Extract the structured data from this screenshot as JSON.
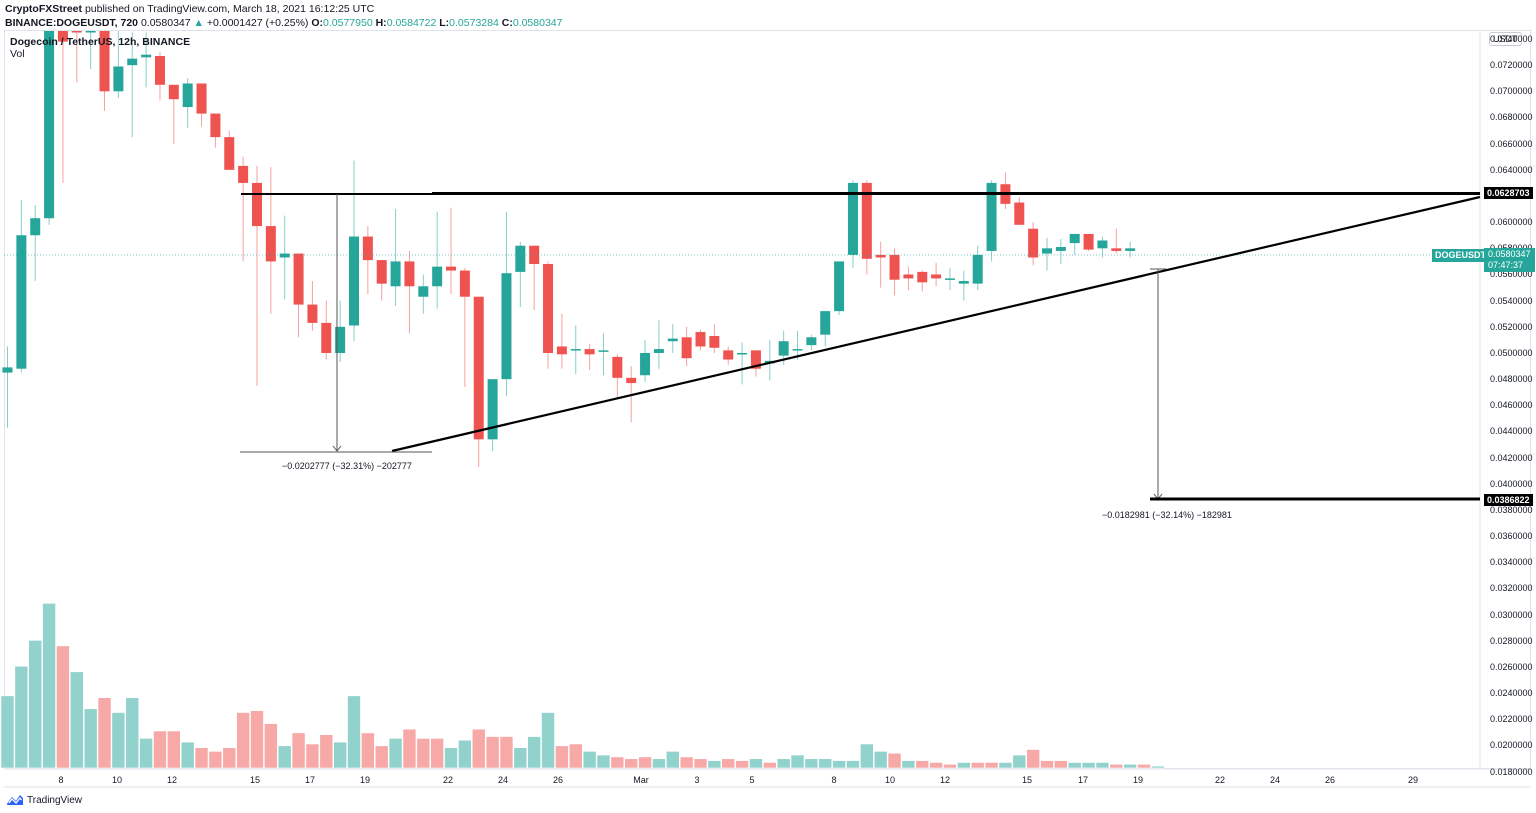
{
  "header": {
    "publisher": "CryptoFXStreet",
    "published_text": "published on TradingView.com, March 18, 2021 16:12:25 UTC",
    "symbol_line": "BINANCE:DOGEUSDT, 720",
    "last": "0.0580347",
    "change": "+0.0001427 (+0.25%)",
    "open_label": "O:",
    "open": "0.0577950",
    "high_label": "H:",
    "high": "0.0584722",
    "low_label": "L:",
    "low": "0.0573284",
    "close_label": "C:",
    "close": "0.0580347"
  },
  "legend": {
    "title": "Dogecoin / TetherUS, 12h, BINANCE",
    "volume": "Vol"
  },
  "price_axis": {
    "currency": "USDT",
    "labels": [
      "0.0740000",
      "0.0720000",
      "0.0700000",
      "0.0680000",
      "0.0660000",
      "0.0640000",
      "0.0620000",
      "0.0600000",
      "0.0580000",
      "0.0560000",
      "0.0540000",
      "0.0520000",
      "0.0500000",
      "0.0480000",
      "0.0460000",
      "0.0440000",
      "0.0420000",
      "0.0400000",
      "0.0380000",
      "0.0360000",
      "0.0340000",
      "0.0320000",
      "0.0300000",
      "0.0280000",
      "0.0260000",
      "0.0240000",
      "0.0220000",
      "0.0200000",
      "0.0180000"
    ],
    "resistance_tag": "0.0628703",
    "target_tag": "0.0386822",
    "current_symbol": "DOGEUSDT",
    "current_price": "0.0580347",
    "countdown": "07:47:37"
  },
  "time_axis": {
    "labels": [
      "8",
      "10",
      "12",
      "15",
      "17",
      "19",
      "22",
      "24",
      "26",
      "Mar",
      "3",
      "5",
      "8",
      "10",
      "12",
      "15",
      "17",
      "19",
      "22",
      "24",
      "26",
      "29"
    ]
  },
  "measurements": {
    "left": "−0.0202777 (−32.31%) −202777",
    "right": "−0.0182981 (−32.14%) −182981"
  },
  "branding": {
    "name": "TradingView"
  },
  "colors": {
    "up": "#26a69a",
    "down": "#ef5350",
    "vol_up": "#92d2cc",
    "vol_down": "#f7a9a7",
    "lines": "#000000"
  },
  "chart_data": {
    "type": "candlestick",
    "title": "Dogecoin / TetherUS, 12h, BINANCE",
    "ylabel": "USDT",
    "ylim": [
      0.0175,
      0.0755
    ],
    "interval": "12h",
    "annotations": [
      {
        "type": "horizontal_resistance",
        "price": 0.0628703
      },
      {
        "type": "ascending_trendline",
        "from_date": "Feb 20",
        "from_price": 0.0425,
        "to_date": "Mar 31",
        "to_price": 0.0628
      },
      {
        "type": "target",
        "price": 0.0386822
      },
      {
        "type": "measure",
        "text": "−0.0202777 (−32.31%) −202777"
      },
      {
        "type": "measure",
        "text": "−0.0182981 (−32.14%) −182981"
      }
    ],
    "candles": [
      {
        "o": 0.0485,
        "h": 0.0505,
        "l": 0.0443,
        "c": 0.0489
      },
      {
        "o": 0.0488,
        "h": 0.0617,
        "l": 0.0485,
        "c": 0.059
      },
      {
        "o": 0.059,
        "h": 0.0613,
        "l": 0.0555,
        "c": 0.0603
      },
      {
        "o": 0.0603,
        "h": 0.076,
        "l": 0.0598,
        "c": 0.076
      },
      {
        "o": 0.076,
        "h": 0.076,
        "l": 0.063,
        "c": 0.0738
      },
      {
        "o": 0.0755,
        "h": 0.076,
        "l": 0.0707,
        "c": 0.0745
      },
      {
        "o": 0.076,
        "h": 0.076,
        "l": 0.0717,
        "c": 0.076
      },
      {
        "o": 0.076,
        "h": 0.076,
        "l": 0.0685,
        "c": 0.07
      },
      {
        "o": 0.07,
        "h": 0.0752,
        "l": 0.0695,
        "c": 0.0719
      },
      {
        "o": 0.072,
        "h": 0.0745,
        "l": 0.0665,
        "c": 0.0725
      },
      {
        "o": 0.0726,
        "h": 0.0745,
        "l": 0.0703,
        "c": 0.0728
      },
      {
        "o": 0.0727,
        "h": 0.073,
        "l": 0.0693,
        "c": 0.0705
      },
      {
        "o": 0.0705,
        "h": 0.07,
        "l": 0.066,
        "c": 0.0694
      },
      {
        "o": 0.0688,
        "h": 0.071,
        "l": 0.0672,
        "c": 0.0706
      },
      {
        "o": 0.0706,
        "h": 0.07,
        "l": 0.0673,
        "c": 0.0683
      },
      {
        "o": 0.0683,
        "h": 0.0679,
        "l": 0.0657,
        "c": 0.0665
      },
      {
        "o": 0.0665,
        "h": 0.067,
        "l": 0.0644,
        "c": 0.064
      },
      {
        "o": 0.0643,
        "h": 0.065,
        "l": 0.057,
        "c": 0.063
      },
      {
        "o": 0.063,
        "h": 0.0643,
        "l": 0.0475,
        "c": 0.0597
      },
      {
        "o": 0.0597,
        "h": 0.0642,
        "l": 0.053,
        "c": 0.057
      },
      {
        "o": 0.0573,
        "h": 0.0605,
        "l": 0.0541,
        "c": 0.0576
      },
      {
        "o": 0.0576,
        "h": 0.0573,
        "l": 0.0512,
        "c": 0.0537
      },
      {
        "o": 0.0537,
        "h": 0.0555,
        "l": 0.0517,
        "c": 0.0523
      },
      {
        "o": 0.0523,
        "h": 0.054,
        "l": 0.0495,
        "c": 0.05
      },
      {
        "o": 0.05,
        "h": 0.054,
        "l": 0.0493,
        "c": 0.052
      },
      {
        "o": 0.0521,
        "h": 0.0647,
        "l": 0.0509,
        "c": 0.0589
      },
      {
        "o": 0.0589,
        "h": 0.0597,
        "l": 0.0545,
        "c": 0.0571
      },
      {
        "o": 0.0571,
        "h": 0.056,
        "l": 0.054,
        "c": 0.0553
      },
      {
        "o": 0.0551,
        "h": 0.061,
        "l": 0.0536,
        "c": 0.057
      },
      {
        "o": 0.057,
        "h": 0.0578,
        "l": 0.0515,
        "c": 0.0551
      },
      {
        "o": 0.0543,
        "h": 0.056,
        "l": 0.053,
        "c": 0.0551
      },
      {
        "o": 0.0551,
        "h": 0.0608,
        "l": 0.0534,
        "c": 0.0566
      },
      {
        "o": 0.0566,
        "h": 0.0611,
        "l": 0.0545,
        "c": 0.0563
      },
      {
        "o": 0.0563,
        "h": 0.0565,
        "l": 0.0474,
        "c": 0.0543
      },
      {
        "o": 0.0543,
        "h": 0.0543,
        "l": 0.0413,
        "c": 0.0434
      },
      {
        "o": 0.0434,
        "h": 0.0478,
        "l": 0.0425,
        "c": 0.048
      },
      {
        "o": 0.048,
        "h": 0.0608,
        "l": 0.0467,
        "c": 0.0561
      },
      {
        "o": 0.0562,
        "h": 0.0585,
        "l": 0.0535,
        "c": 0.0582
      },
      {
        "o": 0.0582,
        "h": 0.0574,
        "l": 0.0533,
        "c": 0.0568
      },
      {
        "o": 0.0568,
        "h": 0.057,
        "l": 0.0488,
        "c": 0.05
      },
      {
        "o": 0.0505,
        "h": 0.053,
        "l": 0.0488,
        "c": 0.0499
      },
      {
        "o": 0.0502,
        "h": 0.0521,
        "l": 0.0484,
        "c": 0.0503
      },
      {
        "o": 0.0503,
        "h": 0.0507,
        "l": 0.0487,
        "c": 0.0499
      },
      {
        "o": 0.0501,
        "h": 0.0515,
        "l": 0.0483,
        "c": 0.0502
      },
      {
        "o": 0.0497,
        "h": 0.0499,
        "l": 0.0466,
        "c": 0.0481
      },
      {
        "o": 0.0481,
        "h": 0.049,
        "l": 0.0447,
        "c": 0.0477
      },
      {
        "o": 0.0483,
        "h": 0.051,
        "l": 0.0478,
        "c": 0.05
      },
      {
        "o": 0.05,
        "h": 0.0525,
        "l": 0.0488,
        "c": 0.0503
      },
      {
        "o": 0.0509,
        "h": 0.0522,
        "l": 0.05,
        "c": 0.0511
      },
      {
        "o": 0.0512,
        "h": 0.052,
        "l": 0.049,
        "c": 0.0496
      },
      {
        "o": 0.0516,
        "h": 0.0518,
        "l": 0.0502,
        "c": 0.0505
      },
      {
        "o": 0.0513,
        "h": 0.0522,
        "l": 0.05,
        "c": 0.0504
      },
      {
        "o": 0.0502,
        "h": 0.0505,
        "l": 0.0491,
        "c": 0.0495
      },
      {
        "o": 0.0499,
        "h": 0.0508,
        "l": 0.0476,
        "c": 0.05
      },
      {
        "o": 0.0502,
        "h": 0.0495,
        "l": 0.0482,
        "c": 0.0488
      },
      {
        "o": 0.0492,
        "h": 0.051,
        "l": 0.0479,
        "c": 0.0494
      },
      {
        "o": 0.0498,
        "h": 0.0517,
        "l": 0.0491,
        "c": 0.0509
      },
      {
        "o": 0.0502,
        "h": 0.0517,
        "l": 0.0495,
        "c": 0.0503
      },
      {
        "o": 0.0506,
        "h": 0.0514,
        "l": 0.0502,
        "c": 0.0512
      },
      {
        "o": 0.0514,
        "h": 0.0525,
        "l": 0.0505,
        "c": 0.0532
      },
      {
        "o": 0.0532,
        "h": 0.0568,
        "l": 0.0529,
        "c": 0.057
      },
      {
        "o": 0.0575,
        "h": 0.0632,
        "l": 0.0565,
        "c": 0.063
      },
      {
        "o": 0.063,
        "h": 0.0632,
        "l": 0.056,
        "c": 0.0572
      },
      {
        "o": 0.0575,
        "h": 0.0585,
        "l": 0.055,
        "c": 0.0573
      },
      {
        "o": 0.0575,
        "h": 0.058,
        "l": 0.0544,
        "c": 0.0556
      },
      {
        "o": 0.056,
        "h": 0.0566,
        "l": 0.0548,
        "c": 0.0557
      },
      {
        "o": 0.0562,
        "h": 0.0563,
        "l": 0.0547,
        "c": 0.0554
      },
      {
        "o": 0.056,
        "h": 0.0569,
        "l": 0.0551,
        "c": 0.0557
      },
      {
        "o": 0.0556,
        "h": 0.0565,
        "l": 0.0548,
        "c": 0.0557
      },
      {
        "o": 0.0553,
        "h": 0.0563,
        "l": 0.054,
        "c": 0.0555
      },
      {
        "o": 0.0553,
        "h": 0.0582,
        "l": 0.0548,
        "c": 0.0575
      },
      {
        "o": 0.0578,
        "h": 0.0632,
        "l": 0.057,
        "c": 0.063
      },
      {
        "o": 0.0629,
        "h": 0.0638,
        "l": 0.061,
        "c": 0.0614
      },
      {
        "o": 0.0615,
        "h": 0.0619,
        "l": 0.0598,
        "c": 0.0598
      },
      {
        "o": 0.0595,
        "h": 0.06,
        "l": 0.0567,
        "c": 0.0573
      },
      {
        "o": 0.0576,
        "h": 0.0588,
        "l": 0.0563,
        "c": 0.058
      },
      {
        "o": 0.0578,
        "h": 0.0587,
        "l": 0.0568,
        "c": 0.0581
      },
      {
        "o": 0.0584,
        "h": 0.059,
        "l": 0.0575,
        "c": 0.0591
      },
      {
        "o": 0.0591,
        "h": 0.059,
        "l": 0.0578,
        "c": 0.0579
      },
      {
        "o": 0.058,
        "h": 0.0589,
        "l": 0.0573,
        "c": 0.0586
      },
      {
        "o": 0.058,
        "h": 0.0595,
        "l": 0.0576,
        "c": 0.0578
      },
      {
        "o": 0.0578,
        "h": 0.0585,
        "l": 0.0573,
        "c": 0.058
      }
    ],
    "volume_ylim": [
      0,
      1
    ],
    "volumes": [
      {
        "v": 0.39,
        "up": true
      },
      {
        "v": 0.55,
        "up": true
      },
      {
        "v": 0.69,
        "up": true
      },
      {
        "v": 0.89,
        "up": true
      },
      {
        "v": 0.66,
        "up": false
      },
      {
        "v": 0.52,
        "up": true
      },
      {
        "v": 0.32,
        "up": true
      },
      {
        "v": 0.38,
        "up": false
      },
      {
        "v": 0.3,
        "up": true
      },
      {
        "v": 0.38,
        "up": true
      },
      {
        "v": 0.16,
        "up": true
      },
      {
        "v": 0.2,
        "up": false
      },
      {
        "v": 0.2,
        "up": false
      },
      {
        "v": 0.14,
        "up": true
      },
      {
        "v": 0.11,
        "up": false
      },
      {
        "v": 0.09,
        "up": false
      },
      {
        "v": 0.11,
        "up": false
      },
      {
        "v": 0.3,
        "up": false
      },
      {
        "v": 0.31,
        "up": false
      },
      {
        "v": 0.24,
        "up": false
      },
      {
        "v": 0.12,
        "up": true
      },
      {
        "v": 0.19,
        "up": false
      },
      {
        "v": 0.13,
        "up": false
      },
      {
        "v": 0.18,
        "up": false
      },
      {
        "v": 0.14,
        "up": true
      },
      {
        "v": 0.39,
        "up": true
      },
      {
        "v": 0.19,
        "up": false
      },
      {
        "v": 0.12,
        "up": false
      },
      {
        "v": 0.16,
        "up": true
      },
      {
        "v": 0.21,
        "up": false
      },
      {
        "v": 0.16,
        "up": false
      },
      {
        "v": 0.16,
        "up": false
      },
      {
        "v": 0.11,
        "up": true
      },
      {
        "v": 0.15,
        "up": true
      },
      {
        "v": 0.21,
        "up": false
      },
      {
        "v": 0.17,
        "up": false
      },
      {
        "v": 0.17,
        "up": false
      },
      {
        "v": 0.11,
        "up": true
      },
      {
        "v": 0.17,
        "up": true
      },
      {
        "v": 0.3,
        "up": true
      },
      {
        "v": 0.12,
        "up": false
      },
      {
        "v": 0.13,
        "up": false
      },
      {
        "v": 0.09,
        "up": true
      },
      {
        "v": 0.07,
        "up": true
      },
      {
        "v": 0.06,
        "up": false
      },
      {
        "v": 0.05,
        "up": false
      },
      {
        "v": 0.06,
        "up": false
      },
      {
        "v": 0.05,
        "up": true
      },
      {
        "v": 0.09,
        "up": true
      },
      {
        "v": 0.06,
        "up": false
      },
      {
        "v": 0.05,
        "up": false
      },
      {
        "v": 0.04,
        "up": true
      },
      {
        "v": 0.05,
        "up": false
      },
      {
        "v": 0.04,
        "up": false
      },
      {
        "v": 0.05,
        "up": true
      },
      {
        "v": 0.03,
        "up": false
      },
      {
        "v": 0.05,
        "up": true
      },
      {
        "v": 0.07,
        "up": true
      },
      {
        "v": 0.05,
        "up": true
      },
      {
        "v": 0.05,
        "up": true
      },
      {
        "v": 0.04,
        "up": true
      },
      {
        "v": 0.04,
        "up": true
      },
      {
        "v": 0.13,
        "up": true
      },
      {
        "v": 0.09,
        "up": true
      },
      {
        "v": 0.08,
        "up": false
      },
      {
        "v": 0.04,
        "up": true
      },
      {
        "v": 0.04,
        "up": false
      },
      {
        "v": 0.03,
        "up": false
      },
      {
        "v": 0.02,
        "up": false
      },
      {
        "v": 0.03,
        "up": true
      },
      {
        "v": 0.03,
        "up": false
      },
      {
        "v": 0.03,
        "up": false
      },
      {
        "v": 0.03,
        "up": true
      },
      {
        "v": 0.07,
        "up": true
      },
      {
        "v": 0.1,
        "up": false
      },
      {
        "v": 0.04,
        "up": false
      },
      {
        "v": 0.04,
        "up": false
      },
      {
        "v": 0.03,
        "up": true
      },
      {
        "v": 0.03,
        "up": true
      },
      {
        "v": 0.03,
        "up": true
      },
      {
        "v": 0.02,
        "up": false
      },
      {
        "v": 0.02,
        "up": true
      },
      {
        "v": 0.02,
        "up": false
      },
      {
        "v": 0.01,
        "up": true
      }
    ]
  }
}
